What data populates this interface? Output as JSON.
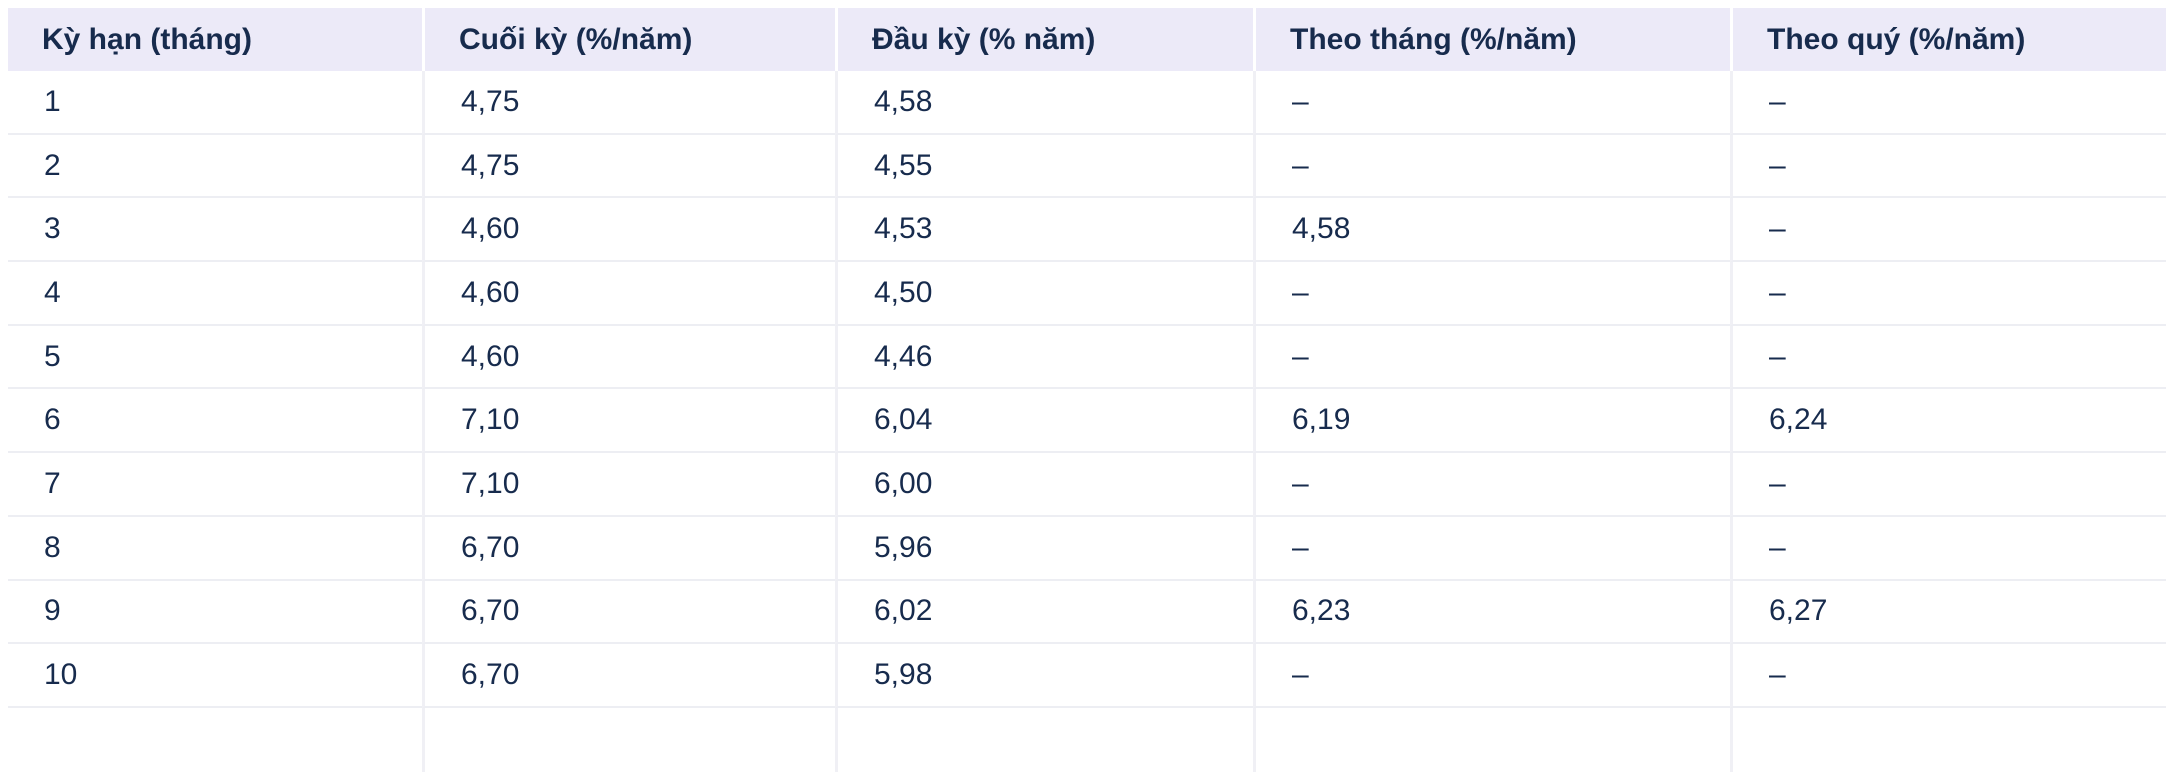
{
  "chart_data": {
    "type": "table",
    "columns": [
      "Kỳ hạn (tháng)",
      "Cuối kỳ (%/năm)",
      "Đầu kỳ (% năm)",
      "Theo tháng (%/năm)",
      "Theo quý (%/năm)"
    ],
    "missing_value_marker": "–",
    "decimal_separator": ",",
    "rows": [
      [
        "1",
        "4,75",
        "4,58",
        "–",
        "–"
      ],
      [
        "2",
        "4,75",
        "4,55",
        "–",
        "–"
      ],
      [
        "3",
        "4,60",
        "4,53",
        "4,58",
        "–"
      ],
      [
        "4",
        "4,60",
        "4,50",
        "–",
        "–"
      ],
      [
        "5",
        "4,60",
        "4,46",
        "–",
        "–"
      ],
      [
        "6",
        "7,10",
        "6,04",
        "6,19",
        "6,24"
      ],
      [
        "7",
        "7,10",
        "6,00",
        "–",
        "–"
      ],
      [
        "8",
        "6,70",
        "5,96",
        "–",
        "–"
      ],
      [
        "9",
        "6,70",
        "6,02",
        "6,23",
        "6,27"
      ],
      [
        "10",
        "6,70",
        "5,98",
        "–",
        "–"
      ]
    ]
  },
  "colors": {
    "header_bg": "#ECEAF8",
    "text": "#172B4D",
    "row_separator": "#EDEEF3",
    "column_separator": "#F0F0F5",
    "page_bg": "#FFFFFF"
  }
}
